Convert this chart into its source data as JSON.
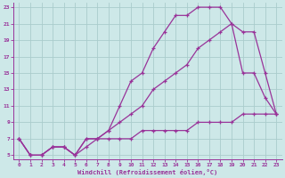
{
  "xlabel": "Windchill (Refroidissement éolien,°C)",
  "bg_color": "#cde8e8",
  "line_color": "#993399",
  "grid_color": "#aacccc",
  "xlim": [
    -0.5,
    23.5
  ],
  "ylim": [
    4.5,
    23.5
  ],
  "yticks": [
    5,
    7,
    9,
    11,
    13,
    15,
    17,
    19,
    21,
    23
  ],
  "xticks": [
    0,
    1,
    2,
    3,
    4,
    5,
    6,
    7,
    8,
    9,
    10,
    11,
    12,
    13,
    14,
    15,
    16,
    17,
    18,
    19,
    20,
    21,
    22,
    23
  ],
  "line1_x": [
    0,
    1,
    2,
    3,
    4,
    5,
    6,
    7,
    8,
    9,
    10,
    11,
    12,
    13,
    14,
    15,
    16,
    17,
    18,
    19,
    20,
    21,
    22,
    23
  ],
  "line1_y": [
    7,
    5,
    5,
    6,
    6,
    5,
    7,
    7,
    8,
    11,
    14,
    15,
    18,
    20,
    22,
    22,
    23,
    23,
    23,
    21,
    15,
    15,
    12,
    10
  ],
  "line2_x": [
    0,
    1,
    2,
    3,
    4,
    5,
    6,
    7,
    8,
    9,
    10,
    11,
    12,
    13,
    14,
    15,
    16,
    17,
    18,
    19,
    20,
    21,
    22,
    23
  ],
  "line2_y": [
    7,
    5,
    5,
    6,
    6,
    5,
    7,
    7,
    8,
    9,
    10,
    11,
    13,
    14,
    15,
    16,
    18,
    19,
    20,
    21,
    20,
    20,
    15,
    10
  ],
  "line3_x": [
    0,
    1,
    2,
    3,
    4,
    5,
    6,
    7,
    8,
    9,
    10,
    11,
    12,
    13,
    14,
    15,
    16,
    17,
    18,
    19,
    20,
    21,
    22,
    23
  ],
  "line3_y": [
    7,
    5,
    5,
    6,
    6,
    5,
    6,
    7,
    7,
    7,
    7,
    8,
    8,
    8,
    8,
    8,
    9,
    9,
    9,
    9,
    10,
    10,
    10,
    10
  ],
  "marker": "+"
}
